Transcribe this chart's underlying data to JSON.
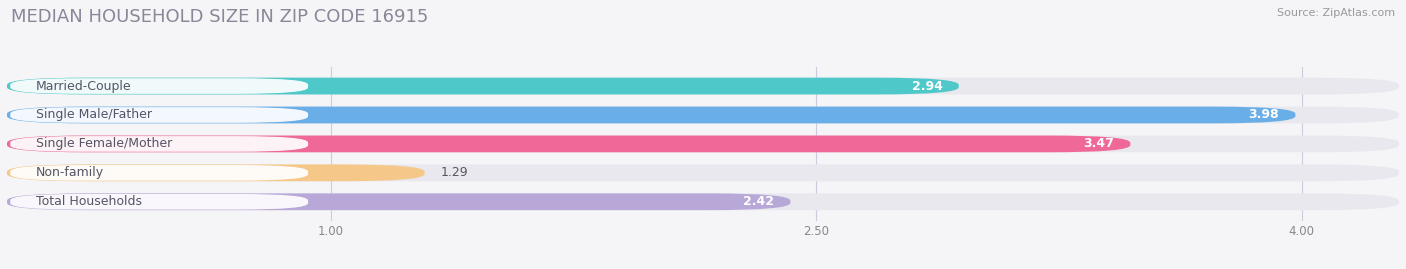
{
  "title": "MEDIAN HOUSEHOLD SIZE IN ZIP CODE 16915",
  "source": "Source: ZipAtlas.com",
  "categories": [
    "Married-Couple",
    "Single Male/Father",
    "Single Female/Mother",
    "Non-family",
    "Total Households"
  ],
  "values": [
    2.94,
    3.98,
    3.47,
    1.29,
    2.42
  ],
  "bar_colors": [
    "#4ec8c8",
    "#6aaee8",
    "#f06898",
    "#f5c88a",
    "#b8a8d8"
  ],
  "label_pill_colors": [
    "#4ec8c8",
    "#6aaee8",
    "#f06898",
    "#f5c88a",
    "#b8a8d8"
  ],
  "xlim_min": 0.0,
  "xlim_max": 4.3,
  "data_min": 1.0,
  "data_max": 4.0,
  "xticks": [
    1.0,
    2.5,
    4.0
  ],
  "xtick_labels": [
    "1.00",
    "2.50",
    "4.00"
  ],
  "background_color": "#f5f5f8",
  "bar_bg_color": "#e8e8ee",
  "title_fontsize": 13,
  "label_fontsize": 9,
  "value_fontsize": 9,
  "bar_height": 0.58,
  "label_color": "#555566",
  "value_color": "#ffffff",
  "source_color": "#999999",
  "title_color": "#888899"
}
